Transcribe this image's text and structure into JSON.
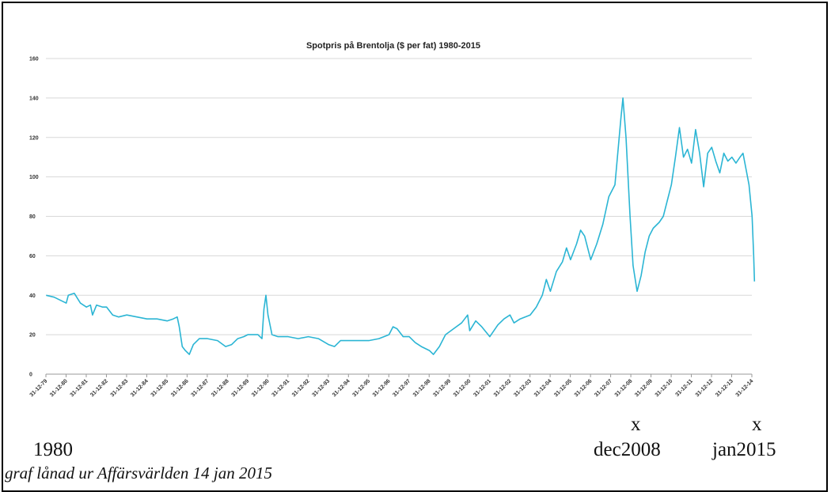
{
  "chart_data": {
    "type": "line",
    "title": "Spotpris på Brentolja ($ per fat) 1980-2015",
    "xlabel": "",
    "ylabel": "",
    "ylim": [
      0,
      160
    ],
    "yticks": [
      0,
      20,
      40,
      60,
      80,
      100,
      120,
      140,
      160
    ],
    "xlim": [
      1979.99,
      2014.99
    ],
    "xticks": [
      {
        "label": "31-12-79",
        "x": 1979.99
      },
      {
        "label": "31-12-80",
        "x": 1980.99
      },
      {
        "label": "31-12-81",
        "x": 1981.99
      },
      {
        "label": "31-12-82",
        "x": 1982.99
      },
      {
        "label": "31-12-83",
        "x": 1983.99
      },
      {
        "label": "31-12-84",
        "x": 1984.99
      },
      {
        "label": "31-12-85",
        "x": 1985.99
      },
      {
        "label": "31-12-86",
        "x": 1986.99
      },
      {
        "label": "31-12-87",
        "x": 1987.99
      },
      {
        "label": "31-12-88",
        "x": 1988.99
      },
      {
        "label": "31-12-89",
        "x": 1989.99
      },
      {
        "label": "31-12-90",
        "x": 1990.99
      },
      {
        "label": "31-12-91",
        "x": 1991.99
      },
      {
        "label": "31-12-92",
        "x": 1992.99
      },
      {
        "label": "31-12-93",
        "x": 1993.99
      },
      {
        "label": "31-12-94",
        "x": 1994.99
      },
      {
        "label": "31-12-95",
        "x": 1995.99
      },
      {
        "label": "31-12-96",
        "x": 1996.99
      },
      {
        "label": "31-12-97",
        "x": 1997.99
      },
      {
        "label": "31-12-98",
        "x": 1998.99
      },
      {
        "label": "31-12-99",
        "x": 1999.99
      },
      {
        "label": "31-12-00",
        "x": 2000.99
      },
      {
        "label": "31-12-01",
        "x": 2001.99
      },
      {
        "label": "31-12-02",
        "x": 2002.99
      },
      {
        "label": "31-12-03",
        "x": 2003.99
      },
      {
        "label": "31-12-04",
        "x": 2004.99
      },
      {
        "label": "31-12-05",
        "x": 2005.99
      },
      {
        "label": "31-12-06",
        "x": 2006.99
      },
      {
        "label": "31-12-07",
        "x": 2007.99
      },
      {
        "label": "31-12-08",
        "x": 2008.99
      },
      {
        "label": "31-12-09",
        "x": 2009.99
      },
      {
        "label": "31-12-10",
        "x": 2010.99
      },
      {
        "label": "31-12-11",
        "x": 2011.99
      },
      {
        "label": "31-12-12",
        "x": 2012.99
      },
      {
        "label": "31-12-13",
        "x": 2013.99
      },
      {
        "label": "31-12-14",
        "x": 2014.99
      }
    ],
    "grid": true,
    "line_color": "#2bb5d4",
    "series": [
      {
        "name": "",
        "points": [
          [
            1980.0,
            40
          ],
          [
            1980.4,
            39
          ],
          [
            1980.8,
            37
          ],
          [
            1981.0,
            36
          ],
          [
            1981.1,
            40
          ],
          [
            1981.4,
            41
          ],
          [
            1981.7,
            36
          ],
          [
            1982.0,
            34
          ],
          [
            1982.2,
            35
          ],
          [
            1982.3,
            30
          ],
          [
            1982.5,
            35
          ],
          [
            1982.8,
            34
          ],
          [
            1983.0,
            34
          ],
          [
            1983.3,
            30
          ],
          [
            1983.6,
            29
          ],
          [
            1984.0,
            30
          ],
          [
            1984.5,
            29
          ],
          [
            1985.0,
            28
          ],
          [
            1985.5,
            28
          ],
          [
            1986.0,
            27
          ],
          [
            1986.3,
            28
          ],
          [
            1986.5,
            29
          ],
          [
            1986.6,
            24
          ],
          [
            1986.75,
            14
          ],
          [
            1986.9,
            12
          ],
          [
            1987.1,
            10
          ],
          [
            1987.3,
            15
          ],
          [
            1987.6,
            18
          ],
          [
            1988.0,
            18
          ],
          [
            1988.5,
            17
          ],
          [
            1988.9,
            14
          ],
          [
            1989.2,
            15
          ],
          [
            1989.5,
            18
          ],
          [
            1989.8,
            19
          ],
          [
            1990.0,
            20
          ],
          [
            1990.5,
            20
          ],
          [
            1990.7,
            18
          ],
          [
            1990.8,
            33
          ],
          [
            1990.9,
            40
          ],
          [
            1991.0,
            30
          ],
          [
            1991.2,
            20
          ],
          [
            1991.5,
            19
          ],
          [
            1992.0,
            19
          ],
          [
            1992.5,
            18
          ],
          [
            1993.0,
            19
          ],
          [
            1993.5,
            18
          ],
          [
            1994.0,
            15
          ],
          [
            1994.3,
            14
          ],
          [
            1994.6,
            17
          ],
          [
            1995.0,
            17
          ],
          [
            1995.5,
            17
          ],
          [
            1996.0,
            17
          ],
          [
            1996.5,
            18
          ],
          [
            1997.0,
            20
          ],
          [
            1997.2,
            24
          ],
          [
            1997.4,
            23
          ],
          [
            1997.7,
            19
          ],
          [
            1998.0,
            19
          ],
          [
            1998.3,
            16
          ],
          [
            1998.6,
            14
          ],
          [
            1999.0,
            12
          ],
          [
            1999.2,
            10
          ],
          [
            1999.5,
            14
          ],
          [
            1999.8,
            20
          ],
          [
            2000.2,
            23
          ],
          [
            2000.6,
            26
          ],
          [
            2000.9,
            30
          ],
          [
            2001.0,
            22
          ],
          [
            2001.3,
            27
          ],
          [
            2001.6,
            24
          ],
          [
            2002.0,
            19
          ],
          [
            2002.4,
            25
          ],
          [
            2002.7,
            28
          ],
          [
            2003.0,
            30
          ],
          [
            2003.2,
            26
          ],
          [
            2003.5,
            28
          ],
          [
            2004.0,
            30
          ],
          [
            2004.3,
            34
          ],
          [
            2004.6,
            40
          ],
          [
            2004.8,
            48
          ],
          [
            2005.0,
            42
          ],
          [
            2005.3,
            52
          ],
          [
            2005.6,
            57
          ],
          [
            2005.8,
            64
          ],
          [
            2006.0,
            58
          ],
          [
            2006.3,
            66
          ],
          [
            2006.5,
            73
          ],
          [
            2006.7,
            70
          ],
          [
            2007.0,
            58
          ],
          [
            2007.3,
            66
          ],
          [
            2007.6,
            76
          ],
          [
            2007.9,
            90
          ],
          [
            2008.2,
            96
          ],
          [
            2008.5,
            130
          ],
          [
            2008.6,
            140
          ],
          [
            2008.75,
            120
          ],
          [
            2008.95,
            80
          ],
          [
            2009.1,
            55
          ],
          [
            2009.3,
            42
          ],
          [
            2009.5,
            50
          ],
          [
            2009.7,
            62
          ],
          [
            2009.9,
            70
          ],
          [
            2010.1,
            74
          ],
          [
            2010.4,
            77
          ],
          [
            2010.6,
            80
          ],
          [
            2010.8,
            88
          ],
          [
            2011.0,
            96
          ],
          [
            2011.2,
            110
          ],
          [
            2011.4,
            125
          ],
          [
            2011.6,
            110
          ],
          [
            2011.8,
            114
          ],
          [
            2012.0,
            107
          ],
          [
            2012.2,
            124
          ],
          [
            2012.4,
            112
          ],
          [
            2012.6,
            95
          ],
          [
            2012.8,
            112
          ],
          [
            2013.0,
            115
          ],
          [
            2013.2,
            108
          ],
          [
            2013.4,
            102
          ],
          [
            2013.6,
            112
          ],
          [
            2013.8,
            108
          ],
          [
            2014.0,
            110
          ],
          [
            2014.2,
            107
          ],
          [
            2014.4,
            110
          ],
          [
            2014.55,
            112
          ],
          [
            2014.7,
            104
          ],
          [
            2014.85,
            96
          ],
          [
            2015.0,
            80
          ],
          [
            2015.08,
            60
          ],
          [
            2015.12,
            47
          ]
        ]
      }
    ]
  },
  "annotations": {
    "start_year": "1980",
    "marker_1": "x",
    "marker_1_label": "dec2008",
    "marker_2": "x",
    "marker_2_label": "jan2015",
    "credit": "graf lånad ur Affärsvärlden 14 jan 2015"
  }
}
